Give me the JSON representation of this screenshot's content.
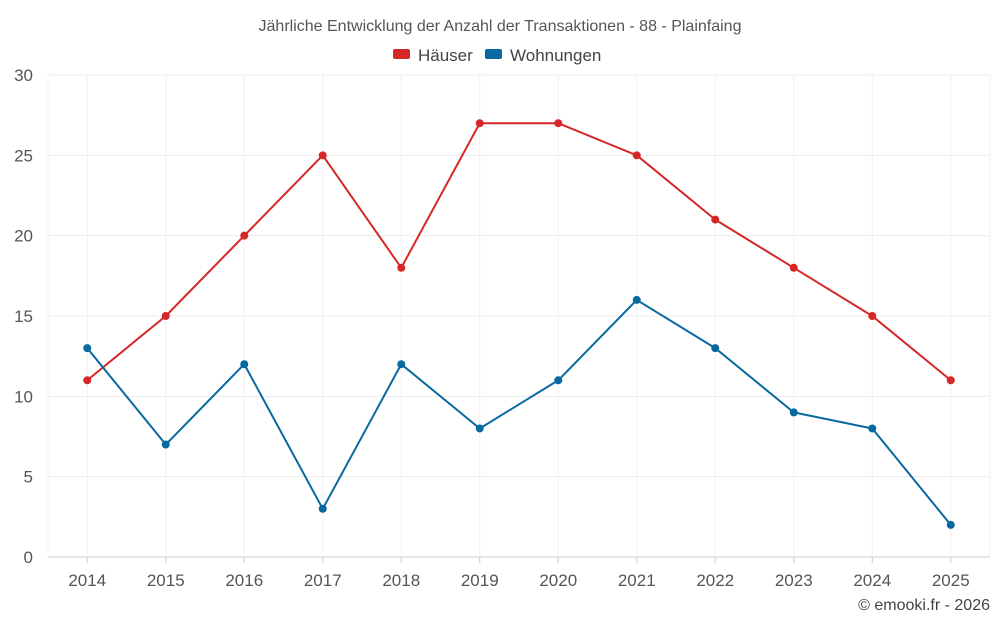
{
  "chart_data": {
    "type": "line",
    "title": "Jährliche Entwicklung der Anzahl der Transaktionen - 88 - Plainfaing",
    "categories": [
      "2014",
      "2015",
      "2016",
      "2017",
      "2018",
      "2019",
      "2020",
      "2021",
      "2022",
      "2023",
      "2024",
      "2025"
    ],
    "series": [
      {
        "name": "Häuser",
        "color": "#d62728",
        "values": [
          11,
          15,
          20,
          25,
          18,
          27,
          27,
          25,
          21,
          18,
          15,
          11
        ]
      },
      {
        "name": "Wohnungen",
        "color": "#0868a0",
        "values": [
          13,
          7,
          12,
          3,
          12,
          8,
          11,
          16,
          13,
          9,
          8,
          2
        ]
      }
    ],
    "ylim": [
      0,
      30
    ],
    "yticks": [
      "0",
      "5",
      "10",
      "15",
      "20",
      "25",
      "30"
    ],
    "legend_position": "top-center",
    "grid": true
  },
  "footer": {
    "credit": "© emooki.fr - 2026"
  }
}
